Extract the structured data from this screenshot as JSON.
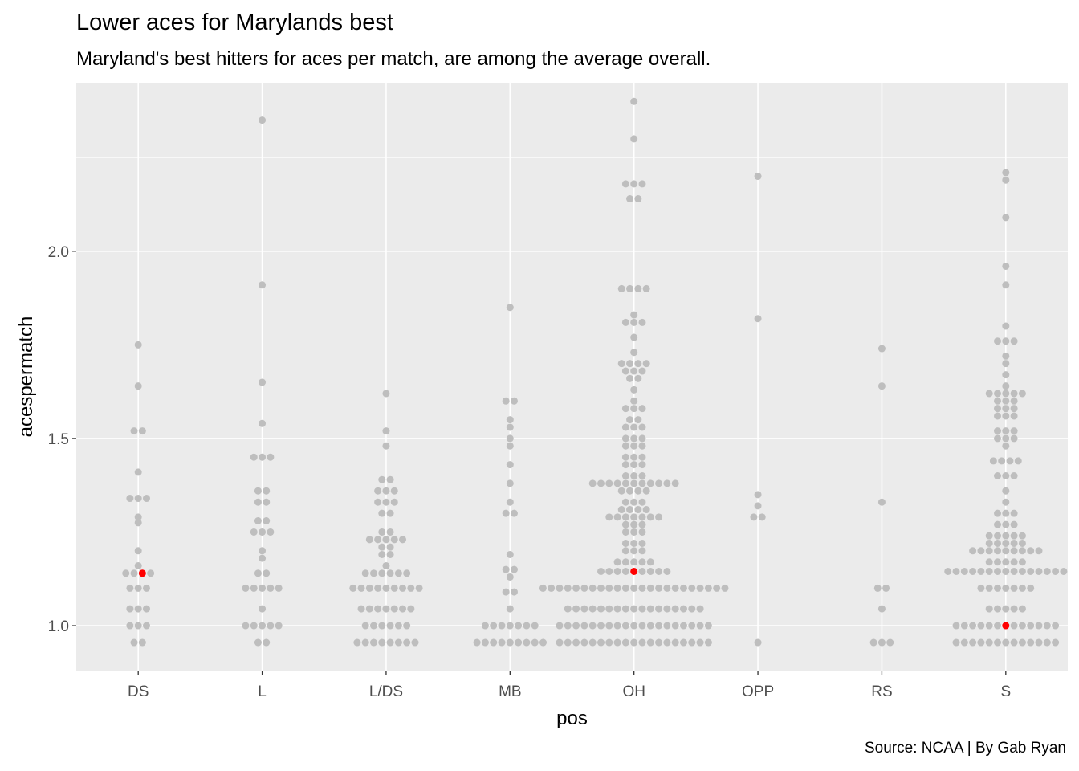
{
  "chart_data": {
    "type": "scatter",
    "subtype": "dotplot",
    "title": "Lower aces for Marylands best",
    "subtitle": "Maryland's best hitters for aces per match, are among the average overall.",
    "caption": "Source: NCAA | By Gab Ryan",
    "xlabel": "pos",
    "ylabel": "acespermatch",
    "categories": [
      "DS",
      "L",
      "L/DS",
      "MB",
      "OH",
      "OPP",
      "RS",
      "S"
    ],
    "ylim": [
      0.88,
      2.45
    ],
    "y_ticks": [
      1.0,
      1.5,
      2.0
    ],
    "y_tick_labels": [
      "1.0",
      "1.5",
      "2.0"
    ],
    "grid": true,
    "point_color": "#bebebe",
    "highlight_color": "#ff0000",
    "panel_background": "#ebebeb",
    "series": [
      {
        "name": "",
        "groups": [
          {
            "pos": "DS",
            "rows": [
              [
                0.955,
                2
              ],
              [
                1.0,
                3
              ],
              [
                1.045,
                3
              ],
              [
                1.1,
                3
              ],
              [
                1.14,
                4
              ],
              [
                1.16,
                1
              ],
              [
                1.2,
                1
              ],
              [
                1.275,
                1
              ],
              [
                1.29,
                1
              ],
              [
                1.34,
                3
              ],
              [
                1.41,
                1
              ],
              [
                1.52,
                2
              ],
              [
                1.64,
                1
              ],
              [
                1.75,
                1
              ]
            ]
          },
          {
            "pos": "L",
            "rows": [
              [
                0.955,
                2
              ],
              [
                1.0,
                5
              ],
              [
                1.045,
                1
              ],
              [
                1.1,
                5
              ],
              [
                1.14,
                2
              ],
              [
                1.18,
                1
              ],
              [
                1.2,
                1
              ],
              [
                1.25,
                3
              ],
              [
                1.28,
                2
              ],
              [
                1.33,
                2
              ],
              [
                1.36,
                2
              ],
              [
                1.45,
                3
              ],
              [
                1.54,
                1
              ],
              [
                1.65,
                1
              ],
              [
                1.91,
                1
              ],
              [
                2.35,
                1
              ]
            ]
          },
          {
            "pos": "L/DS",
            "rows": [
              [
                0.955,
                8
              ],
              [
                1.0,
                6
              ],
              [
                1.045,
                7
              ],
              [
                1.1,
                9
              ],
              [
                1.14,
                6
              ],
              [
                1.16,
                1
              ],
              [
                1.19,
                2
              ],
              [
                1.21,
                2
              ],
              [
                1.23,
                5
              ],
              [
                1.25,
                2
              ],
              [
                1.3,
                2
              ],
              [
                1.33,
                3
              ],
              [
                1.36,
                3
              ],
              [
                1.39,
                2
              ],
              [
                1.48,
                1
              ],
              [
                1.52,
                1
              ],
              [
                1.62,
                1
              ]
            ]
          },
          {
            "pos": "MB",
            "rows": [
              [
                0.955,
                9
              ],
              [
                1.0,
                7
              ],
              [
                1.045,
                1
              ],
              [
                1.09,
                2
              ],
              [
                1.13,
                1
              ],
              [
                1.15,
                2
              ],
              [
                1.19,
                1
              ],
              [
                1.3,
                2
              ],
              [
                1.33,
                1
              ],
              [
                1.38,
                1
              ],
              [
                1.43,
                1
              ],
              [
                1.48,
                1
              ],
              [
                1.5,
                1
              ],
              [
                1.53,
                1
              ],
              [
                1.55,
                1
              ],
              [
                1.6,
                2
              ],
              [
                1.85,
                1
              ]
            ]
          },
          {
            "pos": "OH",
            "rows": [
              [
                0.955,
                19
              ],
              [
                1.0,
                19
              ],
              [
                1.045,
                17
              ],
              [
                1.1,
                23
              ],
              [
                1.145,
                9
              ],
              [
                1.17,
                5
              ],
              [
                1.2,
                3
              ],
              [
                1.22,
                3
              ],
              [
                1.25,
                3
              ],
              [
                1.27,
                3
              ],
              [
                1.29,
                7
              ],
              [
                1.31,
                4
              ],
              [
                1.33,
                3
              ],
              [
                1.36,
                4
              ],
              [
                1.38,
                11
              ],
              [
                1.4,
                3
              ],
              [
                1.43,
                3
              ],
              [
                1.45,
                3
              ],
              [
                1.48,
                3
              ],
              [
                1.5,
                3
              ],
              [
                1.53,
                3
              ],
              [
                1.55,
                2
              ],
              [
                1.58,
                3
              ],
              [
                1.6,
                1
              ],
              [
                1.63,
                1
              ],
              [
                1.66,
                2
              ],
              [
                1.68,
                3
              ],
              [
                1.7,
                4
              ],
              [
                1.73,
                1
              ],
              [
                1.77,
                1
              ],
              [
                1.81,
                3
              ],
              [
                1.83,
                1
              ],
              [
                1.9,
                4
              ],
              [
                2.14,
                2
              ],
              [
                2.18,
                3
              ],
              [
                2.3,
                1
              ],
              [
                2.4,
                1
              ]
            ]
          },
          {
            "pos": "OPP",
            "rows": [
              [
                0.955,
                1
              ],
              [
                1.29,
                2
              ],
              [
                1.32,
                1
              ],
              [
                1.35,
                1
              ],
              [
                1.82,
                1
              ],
              [
                2.2,
                1
              ]
            ]
          },
          {
            "pos": "RS",
            "rows": [
              [
                0.955,
                3
              ],
              [
                1.045,
                1
              ],
              [
                1.1,
                2
              ],
              [
                1.33,
                1
              ],
              [
                1.64,
                1
              ],
              [
                1.74,
                1
              ]
            ]
          },
          {
            "pos": "S",
            "rows": [
              [
                0.955,
                13
              ],
              [
                1.0,
                13
              ],
              [
                1.045,
                5
              ],
              [
                1.1,
                7
              ],
              [
                1.145,
                15
              ],
              [
                1.17,
                5
              ],
              [
                1.2,
                9
              ],
              [
                1.22,
                5
              ],
              [
                1.24,
                5
              ],
              [
                1.27,
                3
              ],
              [
                1.3,
                3
              ],
              [
                1.33,
                1
              ],
              [
                1.36,
                1
              ],
              [
                1.4,
                3
              ],
              [
                1.44,
                4
              ],
              [
                1.48,
                1
              ],
              [
                1.5,
                3
              ],
              [
                1.52,
                3
              ],
              [
                1.56,
                3
              ],
              [
                1.58,
                3
              ],
              [
                1.6,
                3
              ],
              [
                1.62,
                5
              ],
              [
                1.64,
                1
              ],
              [
                1.67,
                1
              ],
              [
                1.7,
                1
              ],
              [
                1.72,
                1
              ],
              [
                1.76,
                3
              ],
              [
                1.8,
                1
              ],
              [
                1.91,
                1
              ],
              [
                1.96,
                1
              ],
              [
                2.09,
                1
              ],
              [
                2.19,
                1
              ],
              [
                2.21,
                1
              ]
            ]
          }
        ]
      }
    ],
    "highlighted_points": [
      {
        "pos": "DS",
        "value": 1.14
      },
      {
        "pos": "OH",
        "value": 1.145
      },
      {
        "pos": "S",
        "value": 1.0
      }
    ]
  }
}
